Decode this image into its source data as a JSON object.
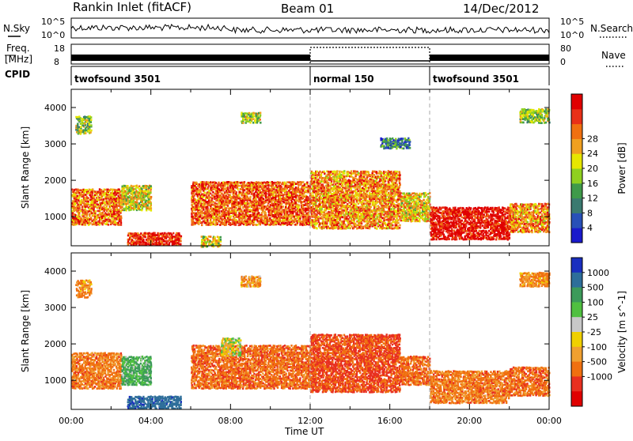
{
  "header": {
    "station": "Rankin Inlet (fitACF)",
    "beam": "Beam 01",
    "date": "14/Dec/2012"
  },
  "noise_panel": {
    "left_label": "N.Sky",
    "left_ticks": [
      "10^5",
      "10^0"
    ],
    "right_label": "N.Search",
    "right_ticks": [
      "10^5",
      "10^0"
    ]
  },
  "freq_panel": {
    "left_label_top": "Freq.",
    "left_label_bottom": "[MHz]",
    "left_ticks": [
      "18",
      "8"
    ],
    "right_label": "Nave",
    "right_ticks": [
      "80",
      "0"
    ]
  },
  "cpid": {
    "label": "CPID",
    "segments": [
      {
        "start": 0,
        "end": 12,
        "text": "twofsound 3501"
      },
      {
        "start": 12,
        "end": 18,
        "text": "normal 150"
      },
      {
        "start": 18,
        "end": 24,
        "text": "twofsound 3501"
      }
    ]
  },
  "x_axis": {
    "ticks": [
      "00:00",
      "04:00",
      "08:00",
      "12:00",
      "16:00",
      "20:00",
      "00:00"
    ],
    "label": "Time UT"
  },
  "chart_data": [
    {
      "type": "heatmap",
      "name": "power",
      "ylabel": "Slant Range [km]",
      "yticks": [
        "1000",
        "2000",
        "3000",
        "4000"
      ],
      "ylim": [
        200,
        4500
      ],
      "xlim": [
        0,
        24
      ],
      "colorbar": {
        "label": "Power [dB]",
        "ticks": [
          "4",
          "8",
          "12",
          "16",
          "20",
          "24",
          "28"
        ],
        "colors": [
          "#1a1acc",
          "#2850b8",
          "#3a7a70",
          "#3f9a4a",
          "#8fd020",
          "#e6e600",
          "#f0a020",
          "#f07010",
          "#e83018",
          "#e00000"
        ]
      },
      "regions": [
        {
          "t0": 0.0,
          "t1": 2.5,
          "r0": 800,
          "r1": 1800,
          "level": 0.75
        },
        {
          "t0": 2.5,
          "t1": 4.0,
          "r0": 1200,
          "r1": 1900,
          "level": 0.55
        },
        {
          "t0": 2.8,
          "t1": 5.5,
          "r0": 250,
          "r1": 600,
          "level": 0.9
        },
        {
          "t0": 0.2,
          "t1": 1.0,
          "r0": 3300,
          "r1": 3800,
          "level": 0.45
        },
        {
          "t0": 6.0,
          "t1": 12.0,
          "r0": 800,
          "r1": 2000,
          "level": 0.78
        },
        {
          "t0": 6.5,
          "t1": 7.5,
          "r0": 200,
          "r1": 500,
          "level": 0.55
        },
        {
          "t0": 12.0,
          "t1": 16.5,
          "r0": 700,
          "r1": 2300,
          "level": 0.7
        },
        {
          "t0": 16.5,
          "t1": 18.0,
          "r0": 900,
          "r1": 1700,
          "level": 0.6
        },
        {
          "t0": 18.0,
          "t1": 22.0,
          "r0": 400,
          "r1": 1300,
          "level": 0.95
        },
        {
          "t0": 22.0,
          "t1": 24.0,
          "r0": 600,
          "r1": 1400,
          "level": 0.7
        },
        {
          "t0": 8.5,
          "t1": 9.5,
          "r0": 3600,
          "r1": 3900,
          "level": 0.5
        },
        {
          "t0": 15.5,
          "t1": 17.0,
          "r0": 2900,
          "r1": 3200,
          "level": 0.25
        },
        {
          "t0": 22.5,
          "t1": 24.0,
          "r0": 3600,
          "r1": 4000,
          "level": 0.45
        }
      ]
    },
    {
      "type": "heatmap",
      "name": "velocity",
      "ylabel": "Slant Range [km]",
      "yticks": [
        "1000",
        "2000",
        "3000",
        "4000"
      ],
      "ylim": [
        200,
        4500
      ],
      "xlim": [
        0,
        24
      ],
      "colorbar": {
        "label": "Velocity [m s^-1]",
        "ticks": [
          "1000",
          "500",
          "100",
          "25",
          "-25",
          "-100",
          "-500",
          "-1000"
        ],
        "colors": [
          "#1a2fbf",
          "#2e6e9a",
          "#3c9a5a",
          "#50c040",
          "#c8c8c8",
          "#f0d000",
          "#f0a030",
          "#f07010",
          "#e83020",
          "#e00000"
        ]
      },
      "regions": [
        {
          "t0": 0.0,
          "t1": 2.5,
          "r0": 800,
          "r1": 1800,
          "vel": -250
        },
        {
          "t0": 2.5,
          "t1": 4.0,
          "r0": 900,
          "r1": 1700,
          "vel": 200
        },
        {
          "t0": 2.8,
          "t1": 5.5,
          "r0": 250,
          "r1": 600,
          "vel": 600
        },
        {
          "t0": 6.0,
          "t1": 12.0,
          "r0": 800,
          "r1": 2000,
          "vel": -300
        },
        {
          "t0": 7.5,
          "t1": 8.5,
          "r0": 1700,
          "r1": 2200,
          "vel": 0
        },
        {
          "t0": 12.0,
          "t1": 16.5,
          "r0": 700,
          "r1": 2300,
          "vel": -400
        },
        {
          "t0": 16.5,
          "t1": 18.0,
          "r0": 900,
          "r1": 1700,
          "vel": -300
        },
        {
          "t0": 18.0,
          "t1": 22.0,
          "r0": 400,
          "r1": 1300,
          "vel": -250
        },
        {
          "t0": 22.0,
          "t1": 24.0,
          "r0": 600,
          "r1": 1400,
          "vel": -300
        },
        {
          "t0": 0.2,
          "t1": 1.0,
          "r0": 3300,
          "r1": 3800,
          "vel": -200
        },
        {
          "t0": 8.5,
          "t1": 9.5,
          "r0": 3600,
          "r1": 3900,
          "vel": -150
        },
        {
          "t0": 22.5,
          "t1": 24.0,
          "r0": 3600,
          "r1": 4000,
          "vel": -200
        }
      ]
    }
  ]
}
